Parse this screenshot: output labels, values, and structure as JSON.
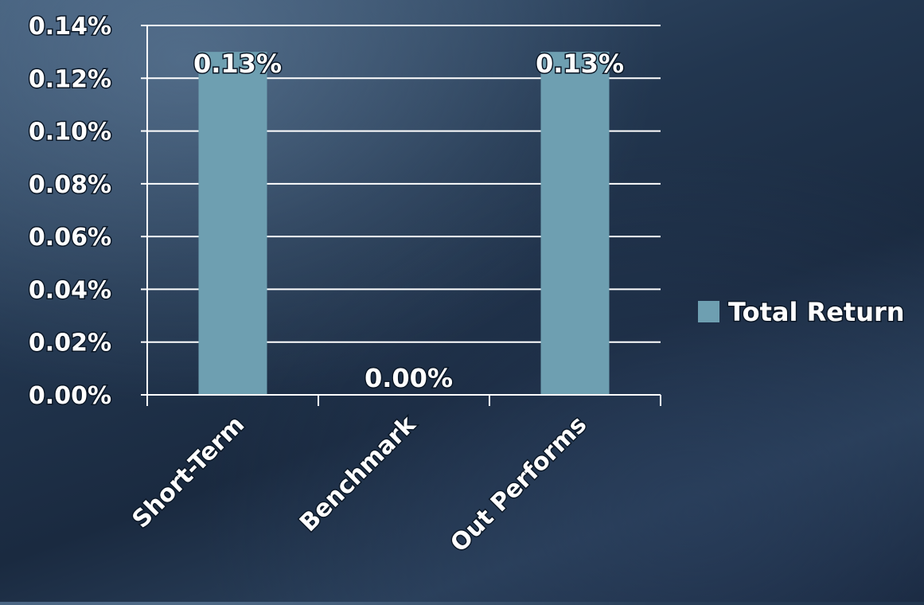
{
  "chart_data": {
    "type": "bar",
    "categories": [
      "Short-Term",
      "Benchmark",
      "Out Performs"
    ],
    "series": [
      {
        "name": "Total Return",
        "values": [
          0.13,
          0.0,
          0.13
        ]
      }
    ],
    "data_labels": [
      "0.13%",
      "0.00%",
      "0.13%"
    ],
    "y_ticks": [
      "0.00%",
      "0.02%",
      "0.04%",
      "0.06%",
      "0.08%",
      "0.10%",
      "0.12%",
      "0.14%"
    ],
    "ylim": [
      0,
      0.14
    ],
    "y_unit": "%",
    "grid": true,
    "legend_position": "right",
    "bar_color": "#6e9fb1",
    "gridline_color": "#ffffff"
  }
}
